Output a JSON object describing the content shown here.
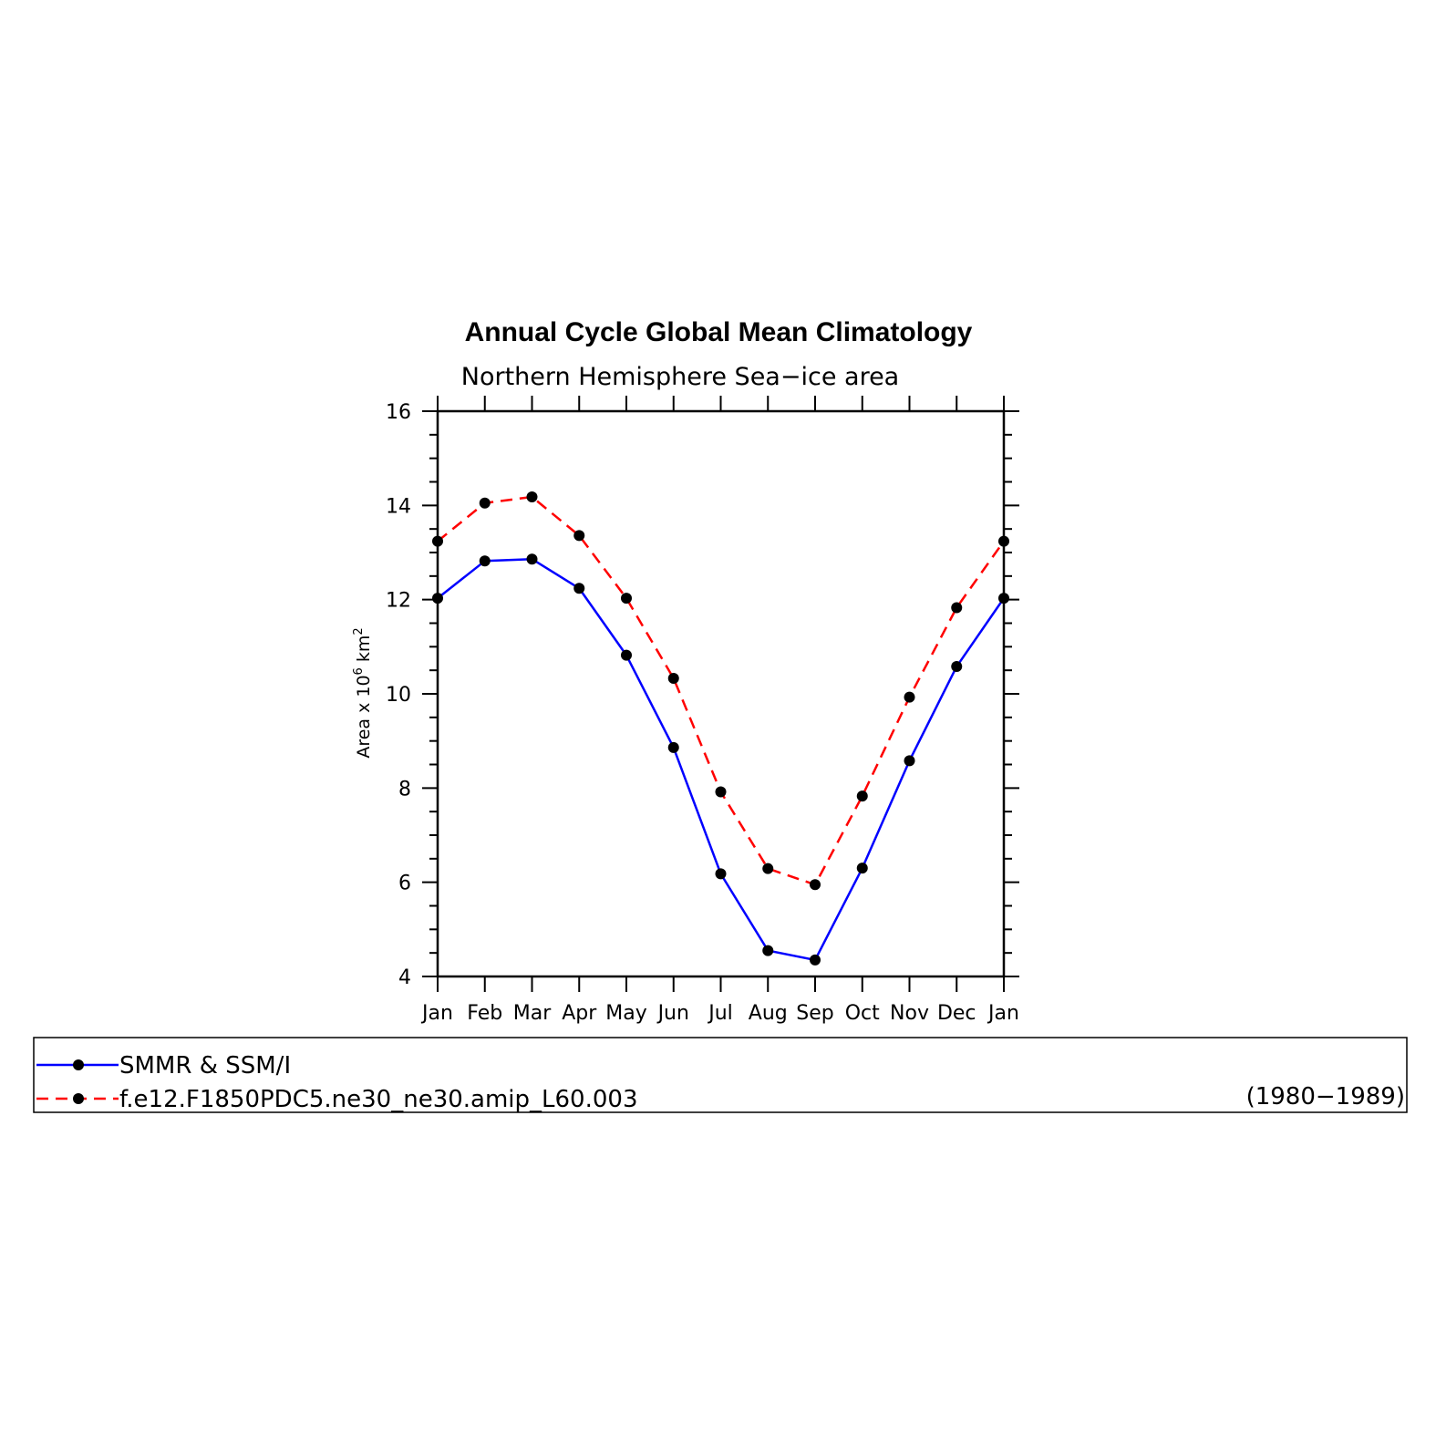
{
  "chart_data": {
    "type": "line",
    "title": "Annual Cycle Global Mean Climatology",
    "subtitle": "Northern Hemisphere Sea−ice area",
    "ylabel": {
      "prefix": "Area x 10",
      "exp1": "6",
      "mid": " km",
      "exp2": "2"
    },
    "ylim": [
      4,
      16
    ],
    "yticks": [
      "4",
      "6",
      "8",
      "10",
      "12",
      "14",
      "16"
    ],
    "categories": [
      "Jan",
      "Feb",
      "Mar",
      "Apr",
      "May",
      "Jun",
      "Jul",
      "Aug",
      "Sep",
      "Oct",
      "Nov",
      "Dec",
      "Jan"
    ],
    "series": [
      {
        "name": "SMMR & SSM/I",
        "color": "#0000ff",
        "dash": "solid",
        "values": [
          12.03,
          12.82,
          12.86,
          12.24,
          10.82,
          8.86,
          6.18,
          4.55,
          4.35,
          6.3,
          8.58,
          10.58,
          12.03
        ]
      },
      {
        "name": "f.e12.F1850PDC5.ne30_ne30.amip_L60.003",
        "color": "#ff0000",
        "dash": "dashed",
        "values": [
          13.24,
          14.05,
          14.18,
          13.36,
          12.03,
          10.33,
          7.92,
          6.29,
          5.95,
          7.83,
          9.93,
          11.83,
          13.24
        ]
      }
    ],
    "legend": {
      "period": "(1980−1989)",
      "placement": "bottom"
    }
  }
}
